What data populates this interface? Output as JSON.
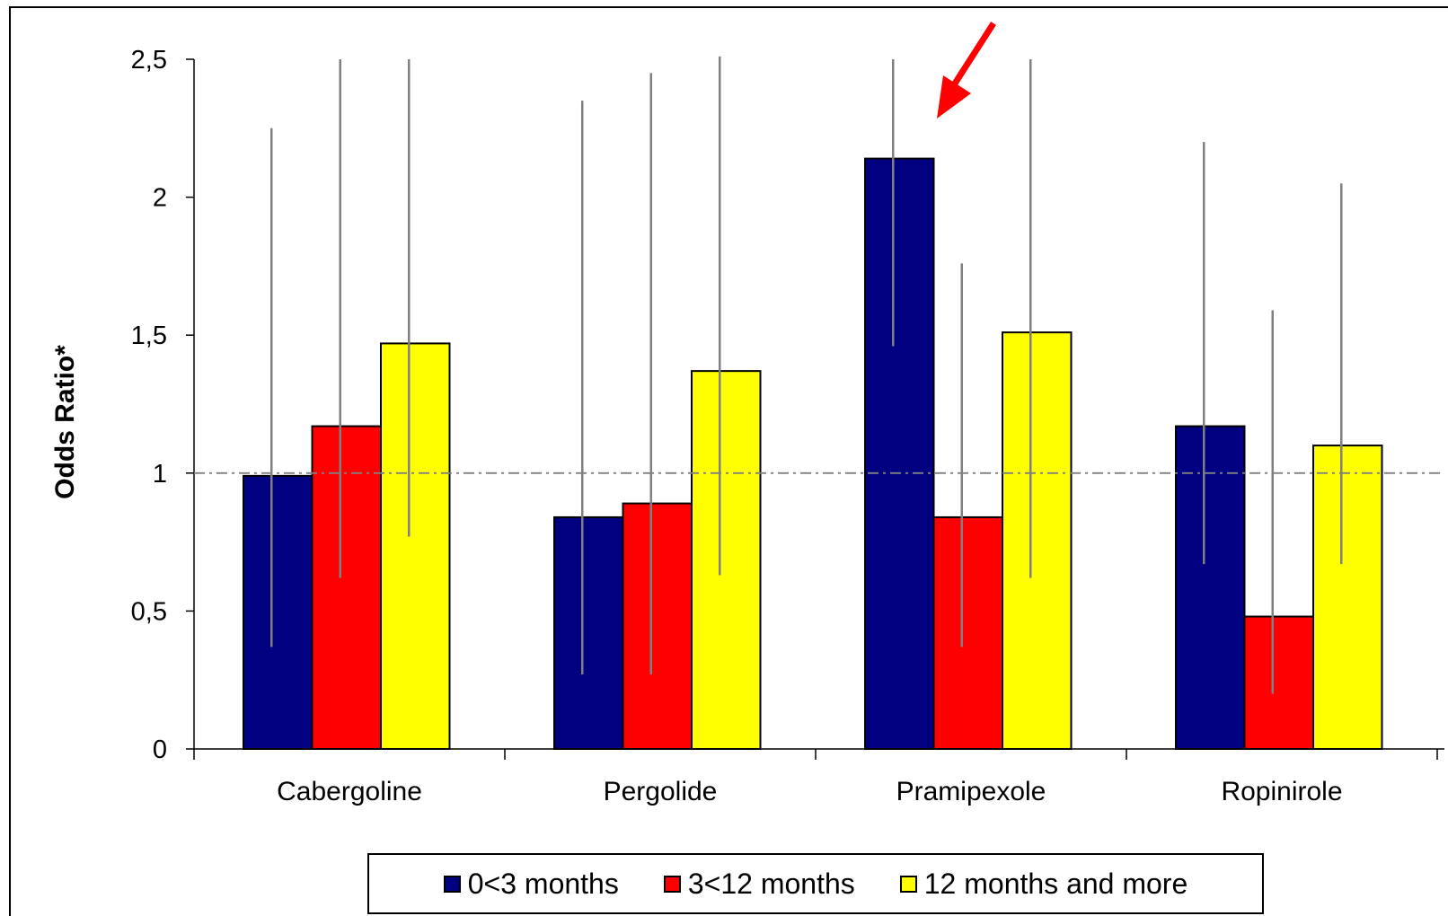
{
  "chart_data": {
    "type": "bar",
    "title": "",
    "xlabel": "",
    "ylabel": "Odds Ratio*",
    "ylim": [
      0,
      2.5
    ],
    "yticks": [
      0,
      0.5,
      1,
      1.5,
      2,
      2.5
    ],
    "ytick_labels": [
      "0",
      "0,5",
      "1",
      "1,5",
      "2",
      "2,5"
    ],
    "reference_line": 1,
    "categories": [
      "Cabergoline",
      "Pergolide",
      "Pramipexole",
      "Ropinirole"
    ],
    "series": [
      {
        "name": "0<3 months",
        "color": "#000080",
        "values": [
          0.99,
          0.84,
          2.14,
          1.17
        ],
        "ci_low": [
          0.37,
          0.27,
          1.46,
          0.67
        ],
        "ci_high": [
          2.25,
          2.35,
          2.5,
          2.2
        ]
      },
      {
        "name": "3<12 months",
        "color": "#ff0000",
        "values": [
          1.17,
          0.89,
          0.84,
          0.48
        ],
        "ci_low": [
          0.62,
          0.27,
          0.37,
          0.2
        ],
        "ci_high": [
          2.5,
          2.45,
          1.76,
          1.59
        ]
      },
      {
        "name": "12 months and more",
        "color": "#ffff00",
        "values": [
          1.47,
          1.37,
          1.51,
          1.1
        ],
        "ci_low": [
          0.77,
          0.63,
          0.62,
          0.67
        ],
        "ci_high": [
          2.5,
          2.51,
          2.5,
          2.05
        ]
      }
    ],
    "grid": false,
    "legend_position": "bottom",
    "annotation": {
      "type": "arrow",
      "color": "#ff0000",
      "target_category": "Pramipexole",
      "target_series": "0<3 months"
    }
  }
}
